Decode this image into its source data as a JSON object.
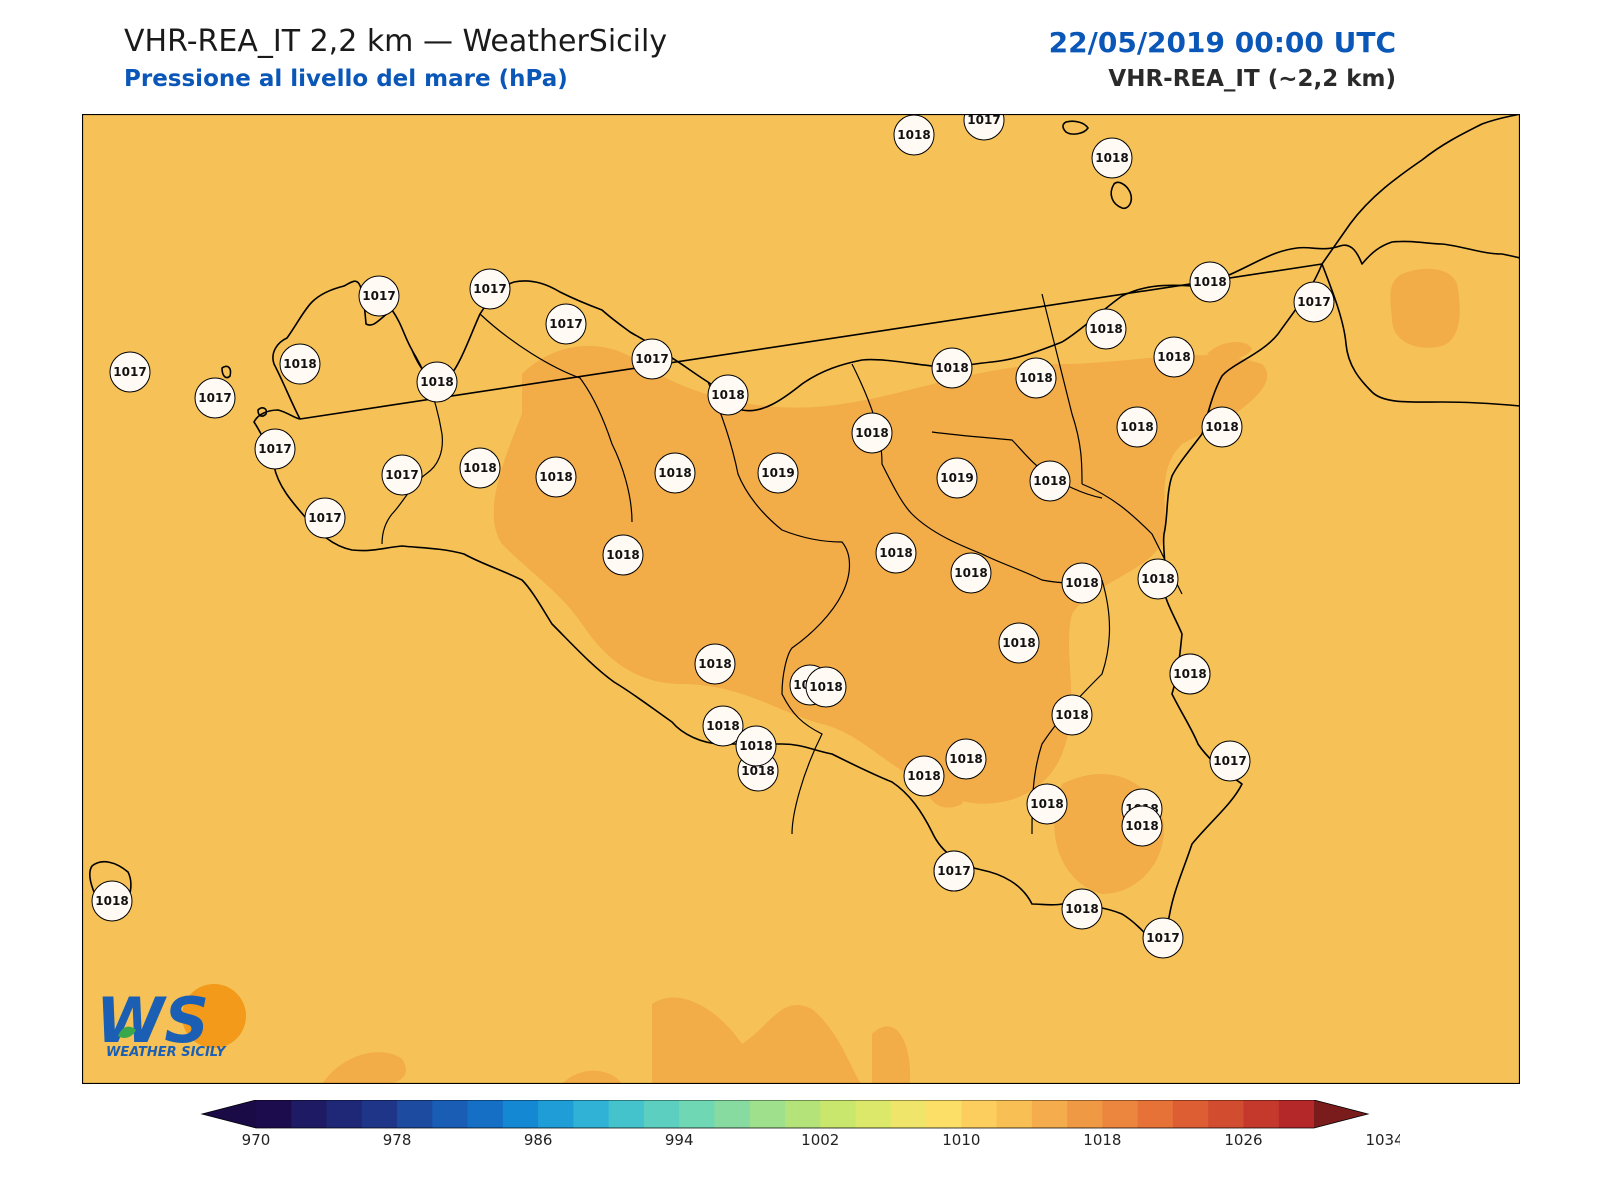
{
  "header": {
    "title": "VHR-REA_IT 2,2 km — WeatherSicily",
    "subtitle": "Pressione al livello del mare (hPa)",
    "datetime": "22/05/2019 00:00 UTC",
    "model": "VHR-REA_IT (~2,2 km)"
  },
  "colors": {
    "background_field": "#f6c257",
    "high_field": "#f2ac48",
    "coast": "#000000",
    "station_fill": "#fffaf3"
  },
  "logo": {
    "text": "WEATHER SICILY",
    "mark": "WS"
  },
  "colorbar": {
    "tick_labels": [
      "970",
      "978",
      "986",
      "994",
      "1002",
      "1010",
      "1018",
      "1026",
      "1034"
    ],
    "colors": [
      "#1c0c4e",
      "#1e1a63",
      "#1f2876",
      "#1f3688",
      "#1d4b9f",
      "#1a5db5",
      "#1570c5",
      "#1588d3",
      "#1f9dd6",
      "#2fb2d5",
      "#45c3cc",
      "#5ccfc1",
      "#70d7b4",
      "#87dba1",
      "#9fe08d",
      "#b4e37a",
      "#c9e66d",
      "#dce86a",
      "#eee56a",
      "#fbdf66",
      "#fcce5e",
      "#f8bf54",
      "#f4ac4c",
      "#f09944",
      "#ec853e",
      "#e67238",
      "#de5e33",
      "#d24c2f",
      "#c4392c",
      "#b5282a"
    ],
    "min_color": "#1a0b47",
    "max_color": "#7b1c1c"
  },
  "stations": [
    {
      "value": "1018",
      "lon": 12.32,
      "lat": 38.6
    },
    {
      "value": "1017",
      "lon": 13.3,
      "lat": 38.7
    },
    {
      "value": "1018",
      "lon": 14.0,
      "lat": 38.6
    },
    {
      "value": "1017",
      "lon": 11.3,
      "lat": 37.97
    },
    {
      "value": "1018",
      "lon": 11.61,
      "lat": 38.07
    },
    {
      "value": "1017",
      "lon": 11.76,
      "lat": 37.94
    },
    {
      "value": "1017",
      "lon": 12.09,
      "lat": 37.86
    },
    {
      "value": "1017",
      "lon": 12.55,
      "lat": 37.9
    },
    {
      "value": "1017",
      "lon": 12.92,
      "lat": 37.81
    },
    {
      "value": "1018",
      "lon": 12.45,
      "lat": 37.98
    },
    {
      "value": "1017",
      "lon": 11.9,
      "lat": 37.73
    },
    {
      "value": "1017",
      "lon": 12.58,
      "lat": 37.71
    },
    {
      "value": "1018",
      "lon": 12.9,
      "lat": 37.8
    },
    {
      "value": "1017",
      "lon": 13.68,
      "lat": 38.2
    },
    {
      "value": "1018",
      "lon": 11.5,
      "lat": 37.42
    },
    {
      "value": "1017",
      "lon": 13.09,
      "lat": 38.12
    },
    {
      "value": "1018",
      "lon": 13.35,
      "lat": 38.07
    }
  ],
  "station_labels_screen": [
    {
      "v": "1018"
    },
    {
      "v": "1017"
    },
    {
      "v": "1018"
    },
    {
      "v": "1018"
    },
    {
      "v": "1017"
    },
    {
      "v": "1017"
    },
    {
      "v": "1017"
    },
    {
      "v": "1017"
    },
    {
      "v": "1017"
    },
    {
      "v": "1018"
    },
    {
      "v": "1018"
    },
    {
      "v": "1017"
    },
    {
      "v": "1017"
    },
    {
      "v": "1017"
    },
    {
      "v": "1018"
    },
    {
      "v": "1018"
    },
    {
      "v": "1018"
    },
    {
      "v": "1018"
    },
    {
      "v": "1018"
    },
    {
      "v": "1018"
    },
    {
      "v": "1018"
    },
    {
      "v": "1018"
    },
    {
      "v": "1019"
    },
    {
      "v": "1018"
    },
    {
      "v": "1019"
    },
    {
      "v": "1018"
    },
    {
      "v": "1018"
    },
    {
      "v": "1017"
    },
    {
      "v": "1017"
    },
    {
      "v": "1018"
    },
    {
      "v": "1018"
    },
    {
      "v": "1018"
    },
    {
      "v": "1018"
    },
    {
      "v": "1018"
    },
    {
      "v": "1018"
    },
    {
      "v": "1018"
    },
    {
      "v": "1018"
    },
    {
      "v": "1018"
    },
    {
      "v": "1018"
    },
    {
      "v": "1018"
    },
    {
      "v": "1018"
    },
    {
      "v": "1018"
    },
    {
      "v": "1018"
    },
    {
      "v": "1017"
    },
    {
      "v": "1018"
    },
    {
      "v": "1018"
    },
    {
      "v": "1018"
    },
    {
      "v": "1018"
    },
    {
      "v": "1018"
    },
    {
      "v": "1018"
    },
    {
      "v": "1017"
    },
    {
      "v": "1018"
    },
    {
      "v": "1018"
    },
    {
      "v": "1018"
    },
    {
      "v": "1017"
    },
    {
      "v": "1018"
    }
  ]
}
